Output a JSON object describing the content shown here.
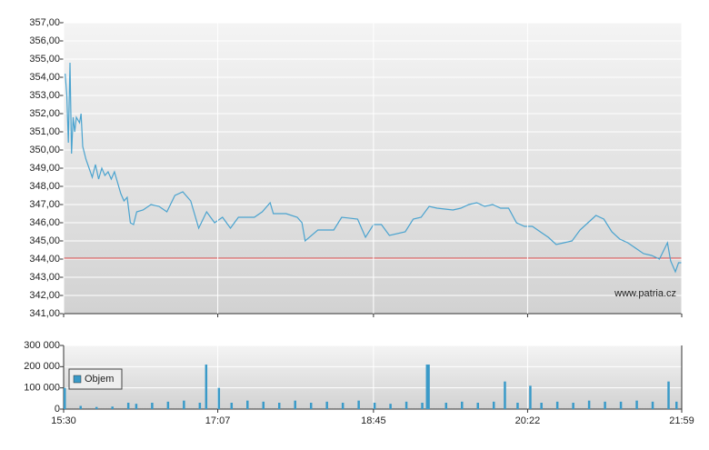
{
  "chart_data": [
    {
      "type": "line",
      "color": "#4aa3cf",
      "grid": true,
      "watermark": "www.patria.cz",
      "reference_line": 344.05,
      "reference_color": "#d04040",
      "xlim": [
        "15:30",
        "21:59"
      ],
      "ylim": [
        341,
        357
      ],
      "yticks": [
        {
          "value": 341,
          "label": "341,00"
        },
        {
          "value": 342,
          "label": "342,00"
        },
        {
          "value": 343,
          "label": "343,00"
        },
        {
          "value": 344,
          "label": "344,00"
        },
        {
          "value": 345,
          "label": "345,00"
        },
        {
          "value": 346,
          "label": "346,00"
        },
        {
          "value": 347,
          "label": "347,00"
        },
        {
          "value": 348,
          "label": "348,00"
        },
        {
          "value": 349,
          "label": "349,00"
        },
        {
          "value": 350,
          "label": "350,00"
        },
        {
          "value": 351,
          "label": "351,00"
        },
        {
          "value": 352,
          "label": "352,00"
        },
        {
          "value": 353,
          "label": "353,00"
        },
        {
          "value": 354,
          "label": "354,00"
        },
        {
          "value": 355,
          "label": "355,00"
        },
        {
          "value": 356,
          "label": "356,00"
        },
        {
          "value": 357,
          "label": "357,00"
        }
      ],
      "x": [
        "15:31",
        "15:32",
        "15:33",
        "15:34",
        "15:35",
        "15:36",
        "15:37",
        "15:38",
        "15:40",
        "15:41",
        "15:42",
        "15:44",
        "15:46",
        "15:48",
        "15:50",
        "15:52",
        "15:54",
        "15:56",
        "15:58",
        "16:00",
        "16:02",
        "16:04",
        "16:06",
        "16:08",
        "16:10",
        "16:12",
        "16:14",
        "16:16",
        "16:20",
        "16:25",
        "16:30",
        "16:35",
        "16:40",
        "16:45",
        "16:50",
        "16:55",
        "17:00",
        "17:05",
        "17:10",
        "17:15",
        "17:20",
        "17:30",
        "17:35",
        "17:40",
        "17:42",
        "17:50",
        "17:57",
        "18:00",
        "18:02",
        "18:10",
        "18:20",
        "18:25",
        "18:35",
        "18:40",
        "18:45",
        "18:50",
        "18:55",
        "19:05",
        "19:10",
        "19:15",
        "19:20",
        "19:25",
        "19:35",
        "19:40",
        "19:45",
        "19:50",
        "19:55",
        "20:00",
        "20:05",
        "20:10",
        "20:15",
        "20:20",
        "20:25",
        "20:30",
        "20:35",
        "20:40",
        "20:45",
        "20:50",
        "20:55",
        "21:00",
        "21:05",
        "21:10",
        "21:15",
        "21:20",
        "21:25",
        "21:30",
        "21:35",
        "21:40",
        "21:45",
        "21:50",
        "21:52",
        "21:55",
        "21:57",
        "21:59"
      ],
      "values": [
        354.2,
        353.0,
        350.4,
        354.8,
        349.8,
        351.8,
        351.0,
        351.8,
        351.5,
        352.0,
        350.2,
        349.5,
        349.0,
        348.5,
        349.2,
        348.4,
        349.0,
        348.6,
        348.8,
        348.4,
        348.8,
        348.2,
        347.6,
        347.2,
        347.4,
        346.0,
        345.9,
        346.6,
        346.7,
        347.0,
        346.9,
        346.6,
        347.5,
        347.7,
        347.2,
        345.7,
        346.6,
        346.0,
        346.3,
        345.7,
        346.3,
        346.3,
        346.6,
        347.1,
        346.5,
        346.5,
        346.3,
        346.0,
        345.0,
        345.6,
        345.6,
        346.3,
        346.2,
        345.2,
        345.9,
        345.9,
        345.3,
        345.5,
        346.2,
        346.3,
        346.9,
        346.8,
        346.7,
        346.8,
        347.0,
        347.1,
        346.9,
        347.0,
        346.8,
        346.8,
        346.0,
        345.8,
        345.8,
        345.5,
        345.2,
        344.8,
        344.9,
        345.0,
        345.6,
        346.0,
        346.4,
        346.2,
        345.5,
        345.1,
        344.9,
        344.6,
        344.3,
        344.2,
        344.0,
        344.9,
        343.9,
        343.3,
        343.8,
        343.8
      ]
    },
    {
      "type": "bar",
      "grid": true,
      "legend": "upper left",
      "xlim": [
        "15:30",
        "21:59"
      ],
      "xticks": [
        "15:30",
        "17:07",
        "18:45",
        "20:22",
        "21:59"
      ],
      "ylim": [
        0,
        300000
      ],
      "yticks": [
        0,
        {
          "value": 100000,
          "label": "100 000"
        },
        {
          "value": 200000,
          "label": "200 000"
        },
        {
          "value": 300000,
          "label": "300 000"
        }
      ],
      "series": [
        {
          "name": "Objem",
          "color": "#3a9ac8",
          "x": [
            "15:30",
            "15:40",
            "15:50",
            "16:00",
            "16:10",
            "16:15",
            "16:25",
            "16:35",
            "16:45",
            "16:55",
            "16:59",
            "17:07",
            "17:15",
            "17:25",
            "17:35",
            "17:45",
            "17:55",
            "18:05",
            "18:15",
            "18:25",
            "18:35",
            "18:45",
            "18:55",
            "19:05",
            "19:15",
            "19:18",
            "19:19",
            "19:30",
            "19:40",
            "19:50",
            "20:00",
            "20:07",
            "20:15",
            "20:23",
            "20:30",
            "20:40",
            "20:50",
            "21:00",
            "21:10",
            "21:20",
            "21:30",
            "21:40",
            "21:50",
            "21:55"
          ],
          "values": [
            100000,
            15000,
            10000,
            12000,
            30000,
            25000,
            30000,
            35000,
            40000,
            30000,
            210000,
            100000,
            30000,
            40000,
            35000,
            30000,
            40000,
            30000,
            35000,
            30000,
            40000,
            30000,
            25000,
            35000,
            30000,
            210000,
            210000,
            30000,
            35000,
            30000,
            35000,
            130000,
            30000,
            110000,
            30000,
            35000,
            30000,
            40000,
            35000,
            35000,
            40000,
            35000,
            130000,
            35000
          ]
        }
      ]
    }
  ]
}
